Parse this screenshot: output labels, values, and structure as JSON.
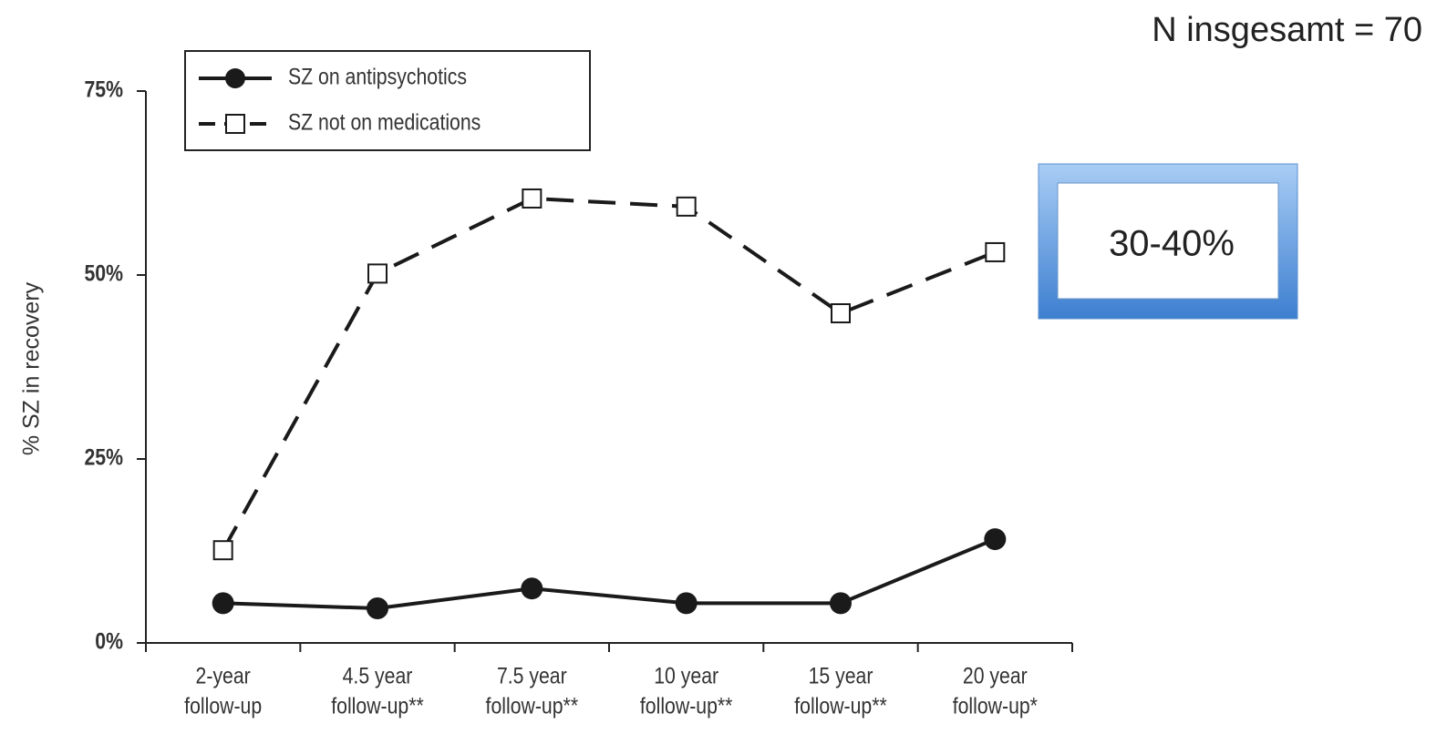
{
  "chart_data": {
    "type": "line",
    "y_label": "% SZ in recovery",
    "categories": [
      [
        "2-year",
        "follow-up"
      ],
      [
        "4.5 year",
        "follow-up**"
      ],
      [
        "7.5 year",
        "follow-up**"
      ],
      [
        "10 year",
        "follow-up**"
      ],
      [
        "15 year",
        "follow-up**"
      ],
      [
        "20 year",
        "follow-up*"
      ]
    ],
    "series": [
      {
        "name": "SZ on antipsychotics",
        "color": "#1a1a1a",
        "marker": "circle",
        "dashed": false,
        "values": [
          5.4,
          4.7,
          7.4,
          5.4,
          5.4,
          14.1
        ]
      },
      {
        "name": "SZ not on medications",
        "color": "#1a1a1a",
        "marker": "square",
        "dashed": true,
        "values": [
          12.6,
          50.2,
          60.4,
          59.3,
          44.8,
          53.1
        ]
      }
    ],
    "ylim": [
      0,
      75
    ],
    "yticks": [
      {
        "value": 0,
        "label": "0%"
      },
      {
        "value": 25,
        "label": "25%"
      },
      {
        "value": 50,
        "label": "50%"
      },
      {
        "value": 75,
        "label": "75%"
      }
    ],
    "legend": "upper left",
    "annotations": [
      "N insgesamt = 70",
      "30-40%"
    ]
  }
}
